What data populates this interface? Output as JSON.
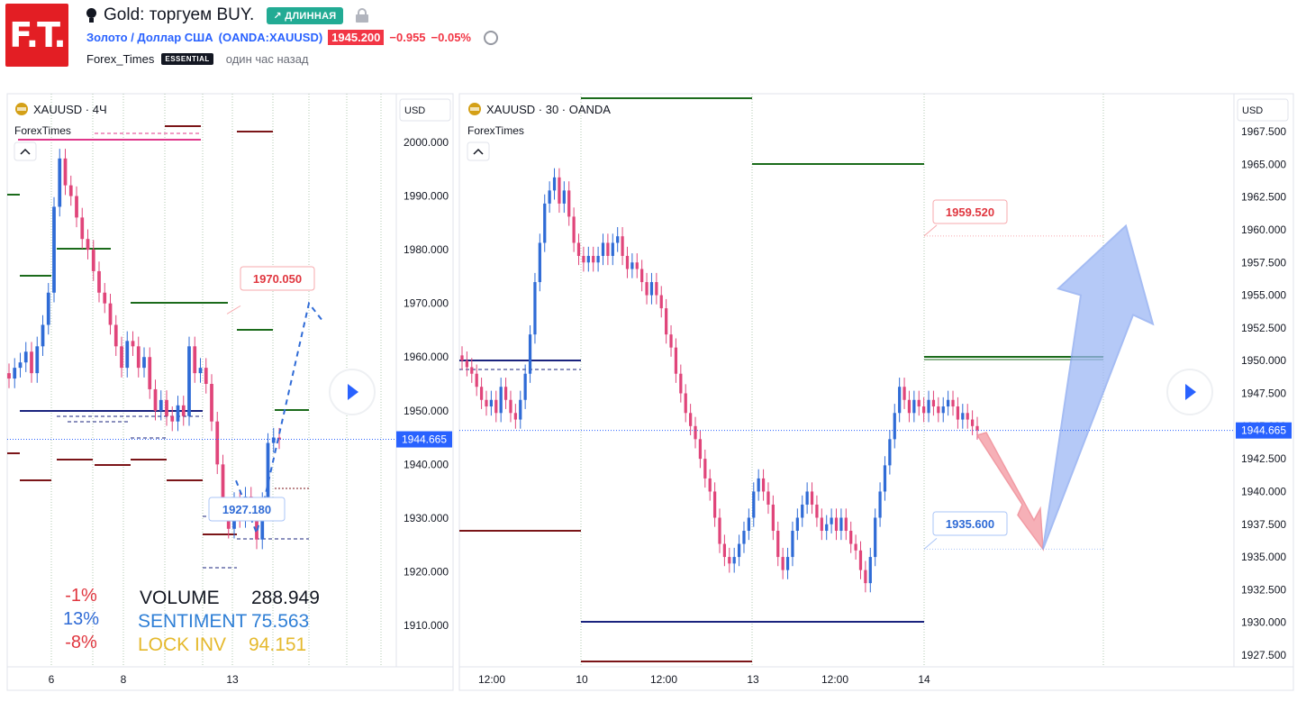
{
  "header": {
    "logo_text": "F.T.",
    "title": "Gold: торгуем BUY.",
    "direction_badge": "↗ ДЛИННАЯ",
    "symbol_link": "Золото / Доллар США",
    "symbol_code": "(OANDA:XAUUSD)",
    "last_price": "1945.200",
    "change_abs": "−0.955",
    "change_pct": "−0.05%",
    "author": "Forex_Times",
    "author_badge": "ESSENTIAL",
    "published": "один час назад",
    "icons": [
      "bulb-icon",
      "lock-icon",
      "alarm-clock-icon"
    ]
  },
  "chart_data": [
    {
      "type": "candlestick",
      "symbol_label": "XAUUSD · 4Ч",
      "watermark": "ForexTimes",
      "currency": "USD",
      "ylim": [
        1902,
        2010
      ],
      "y_ticks": [
        1910,
        1920,
        1930,
        1940,
        1950,
        1960,
        1970,
        1980,
        1990,
        2000
      ],
      "y_tick_labels": [
        "1910.000",
        "1920.000",
        "1930.000",
        "1940.000",
        "1950.000",
        "1960.000",
        "1970.000",
        "1980.000",
        "1990.000",
        "2000.000"
      ],
      "x_tick_labels": [
        "6",
        "8",
        "13"
      ],
      "current_price": 1944.665,
      "current_price_label": "1944.665",
      "target_label": "1970.050",
      "target": 1970.05,
      "entry_label": "1927.180",
      "entry": 1927.18,
      "stats_pct": [
        "-1%",
        "13%",
        "-8%"
      ],
      "stats": [
        {
          "label": "VOLUME",
          "value": "288.949"
        },
        {
          "label": "SENTIMENT",
          "value": "75.563"
        },
        {
          "label": "LOCK INV",
          "value": "94.151"
        }
      ],
      "closes": [
        1956,
        1958,
        1959,
        1961,
        1957,
        1962,
        1966,
        1972,
        1988,
        1997,
        1992,
        1990,
        1986,
        1982,
        1980,
        1976,
        1972,
        1970,
        1966,
        1962,
        1958,
        1963,
        1962,
        1958,
        1960,
        1954,
        1950,
        1952,
        1949,
        1948,
        1951,
        1949,
        1962,
        1957,
        1958,
        1955,
        1948,
        1940,
        1932,
        1928,
        1933,
        1930,
        1934,
        1932,
        1926,
        1933,
        1944,
        1945,
        1944.665
      ]
    },
    {
      "type": "candlestick",
      "symbol_label": "XAUUSD · 30 · OANDA",
      "watermark": "ForexTimes",
      "currency": "USD",
      "ylim": [
        1926.2,
        1969.3
      ],
      "y_ticks": [
        1927.5,
        1930,
        1932.5,
        1935,
        1937.5,
        1940,
        1942.5,
        1945,
        1947.5,
        1950,
        1952.5,
        1955,
        1957.5,
        1960,
        1962.5,
        1965,
        1967.5
      ],
      "y_tick_labels": [
        "1927.500",
        "1930.000",
        "1932.500",
        "1935.000",
        "1937.500",
        "1940.000",
        "1942.500",
        "1945.000",
        "1947.500",
        "1950.000",
        "1952.500",
        "1955.000",
        "1957.500",
        "1960.000",
        "1962.500",
        "1965.000",
        "1967.500"
      ],
      "x_tick_labels": [
        "12:00",
        "10",
        "12:00",
        "13",
        "12:00",
        "14"
      ],
      "current_price": 1944.665,
      "current_price_label": "1944.665",
      "target_label": "1959.520",
      "target": 1959.52,
      "entry_label": "1935.600",
      "entry": 1935.6,
      "closes": [
        1950,
        1949.5,
        1949,
        1948,
        1947,
        1946.5,
        1947,
        1946,
        1948,
        1947,
        1946,
        1945.5,
        1947,
        1949,
        1952,
        1956,
        1959,
        1962,
        1963,
        1964,
        1962,
        1963,
        1961,
        1959,
        1958,
        1957.5,
        1958,
        1957.5,
        1958,
        1959,
        1958,
        1959,
        1959.5,
        1958,
        1957,
        1957.5,
        1957,
        1956,
        1955,
        1956,
        1955,
        1954,
        1952,
        1951,
        1949,
        1947.5,
        1946,
        1945,
        1944,
        1942.5,
        1941,
        1940,
        1938,
        1936,
        1935,
        1934.5,
        1935,
        1936,
        1937,
        1938,
        1940,
        1941,
        1940,
        1939,
        1937,
        1935,
        1934,
        1935,
        1937,
        1938,
        1939,
        1940,
        1939,
        1938,
        1937,
        1937.5,
        1938,
        1937,
        1938,
        1937,
        1936,
        1935.5,
        1934,
        1933,
        1935,
        1938,
        1940,
        1942,
        1944,
        1946,
        1948,
        1947,
        1946,
        1947,
        1946.5,
        1946,
        1947,
        1946.5,
        1946,
        1946.5,
        1947,
        1946.5,
        1945.5,
        1946,
        1945.5,
        1945,
        1944.665
      ]
    }
  ],
  "play_icon": "play-icon"
}
